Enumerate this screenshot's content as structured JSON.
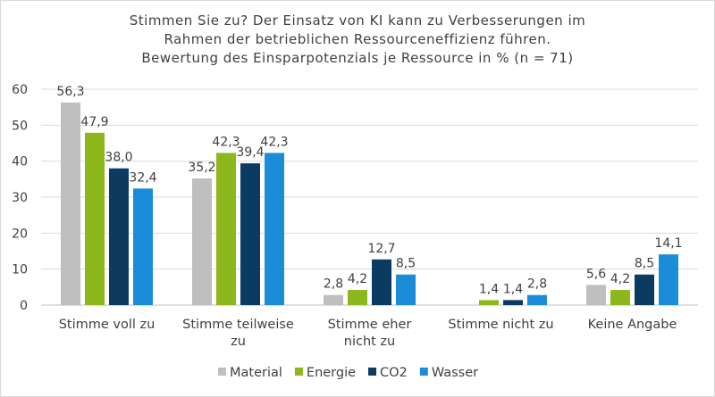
{
  "chart_data": {
    "type": "bar",
    "title": [
      "Stimmen Sie zu? Der Einsatz von KI kann zu Verbesserungen im",
      "Rahmen der betrieblichen Ressourceneffizienz führen.",
      "Bewertung des Einsparpotenzials je Ressource in % (n = 71)"
    ],
    "categories": [
      [
        "Stimme voll zu"
      ],
      [
        "Stimme teilweise",
        "zu"
      ],
      [
        "Stimme eher",
        "nicht zu"
      ],
      [
        "Stimme nicht zu"
      ],
      [
        "Keine Angabe"
      ]
    ],
    "series": [
      {
        "name": "Material",
        "color": "#bfbfbf",
        "values": [
          56.3,
          35.2,
          2.8,
          0,
          5.6
        ],
        "labels": [
          "56,3",
          "35,2",
          "2,8",
          "",
          "5,6"
        ]
      },
      {
        "name": "Energie",
        "color": "#8cb81c",
        "values": [
          47.9,
          42.3,
          4.2,
          1.4,
          4.2
        ],
        "labels": [
          "47,9",
          "42,3",
          "4,2",
          "1,4",
          "4,2"
        ]
      },
      {
        "name": "CO2",
        "color": "#0c3b61",
        "values": [
          38.0,
          39.4,
          12.7,
          1.4,
          8.5
        ],
        "labels": [
          "38,0",
          "39,4",
          "12,7",
          "1,4",
          "8,5"
        ]
      },
      {
        "name": "Wasser",
        "color": "#1a8cd8",
        "values": [
          32.4,
          42.3,
          8.5,
          2.8,
          14.1
        ],
        "labels": [
          "32,4",
          "42,3",
          "8,5",
          "2,8",
          "14,1"
        ]
      }
    ],
    "ylim": [
      0,
      60
    ],
    "yticks": [
      "0",
      "10",
      "20",
      "30",
      "40",
      "50",
      "60"
    ],
    "grid": true,
    "legend": "bottom"
  }
}
